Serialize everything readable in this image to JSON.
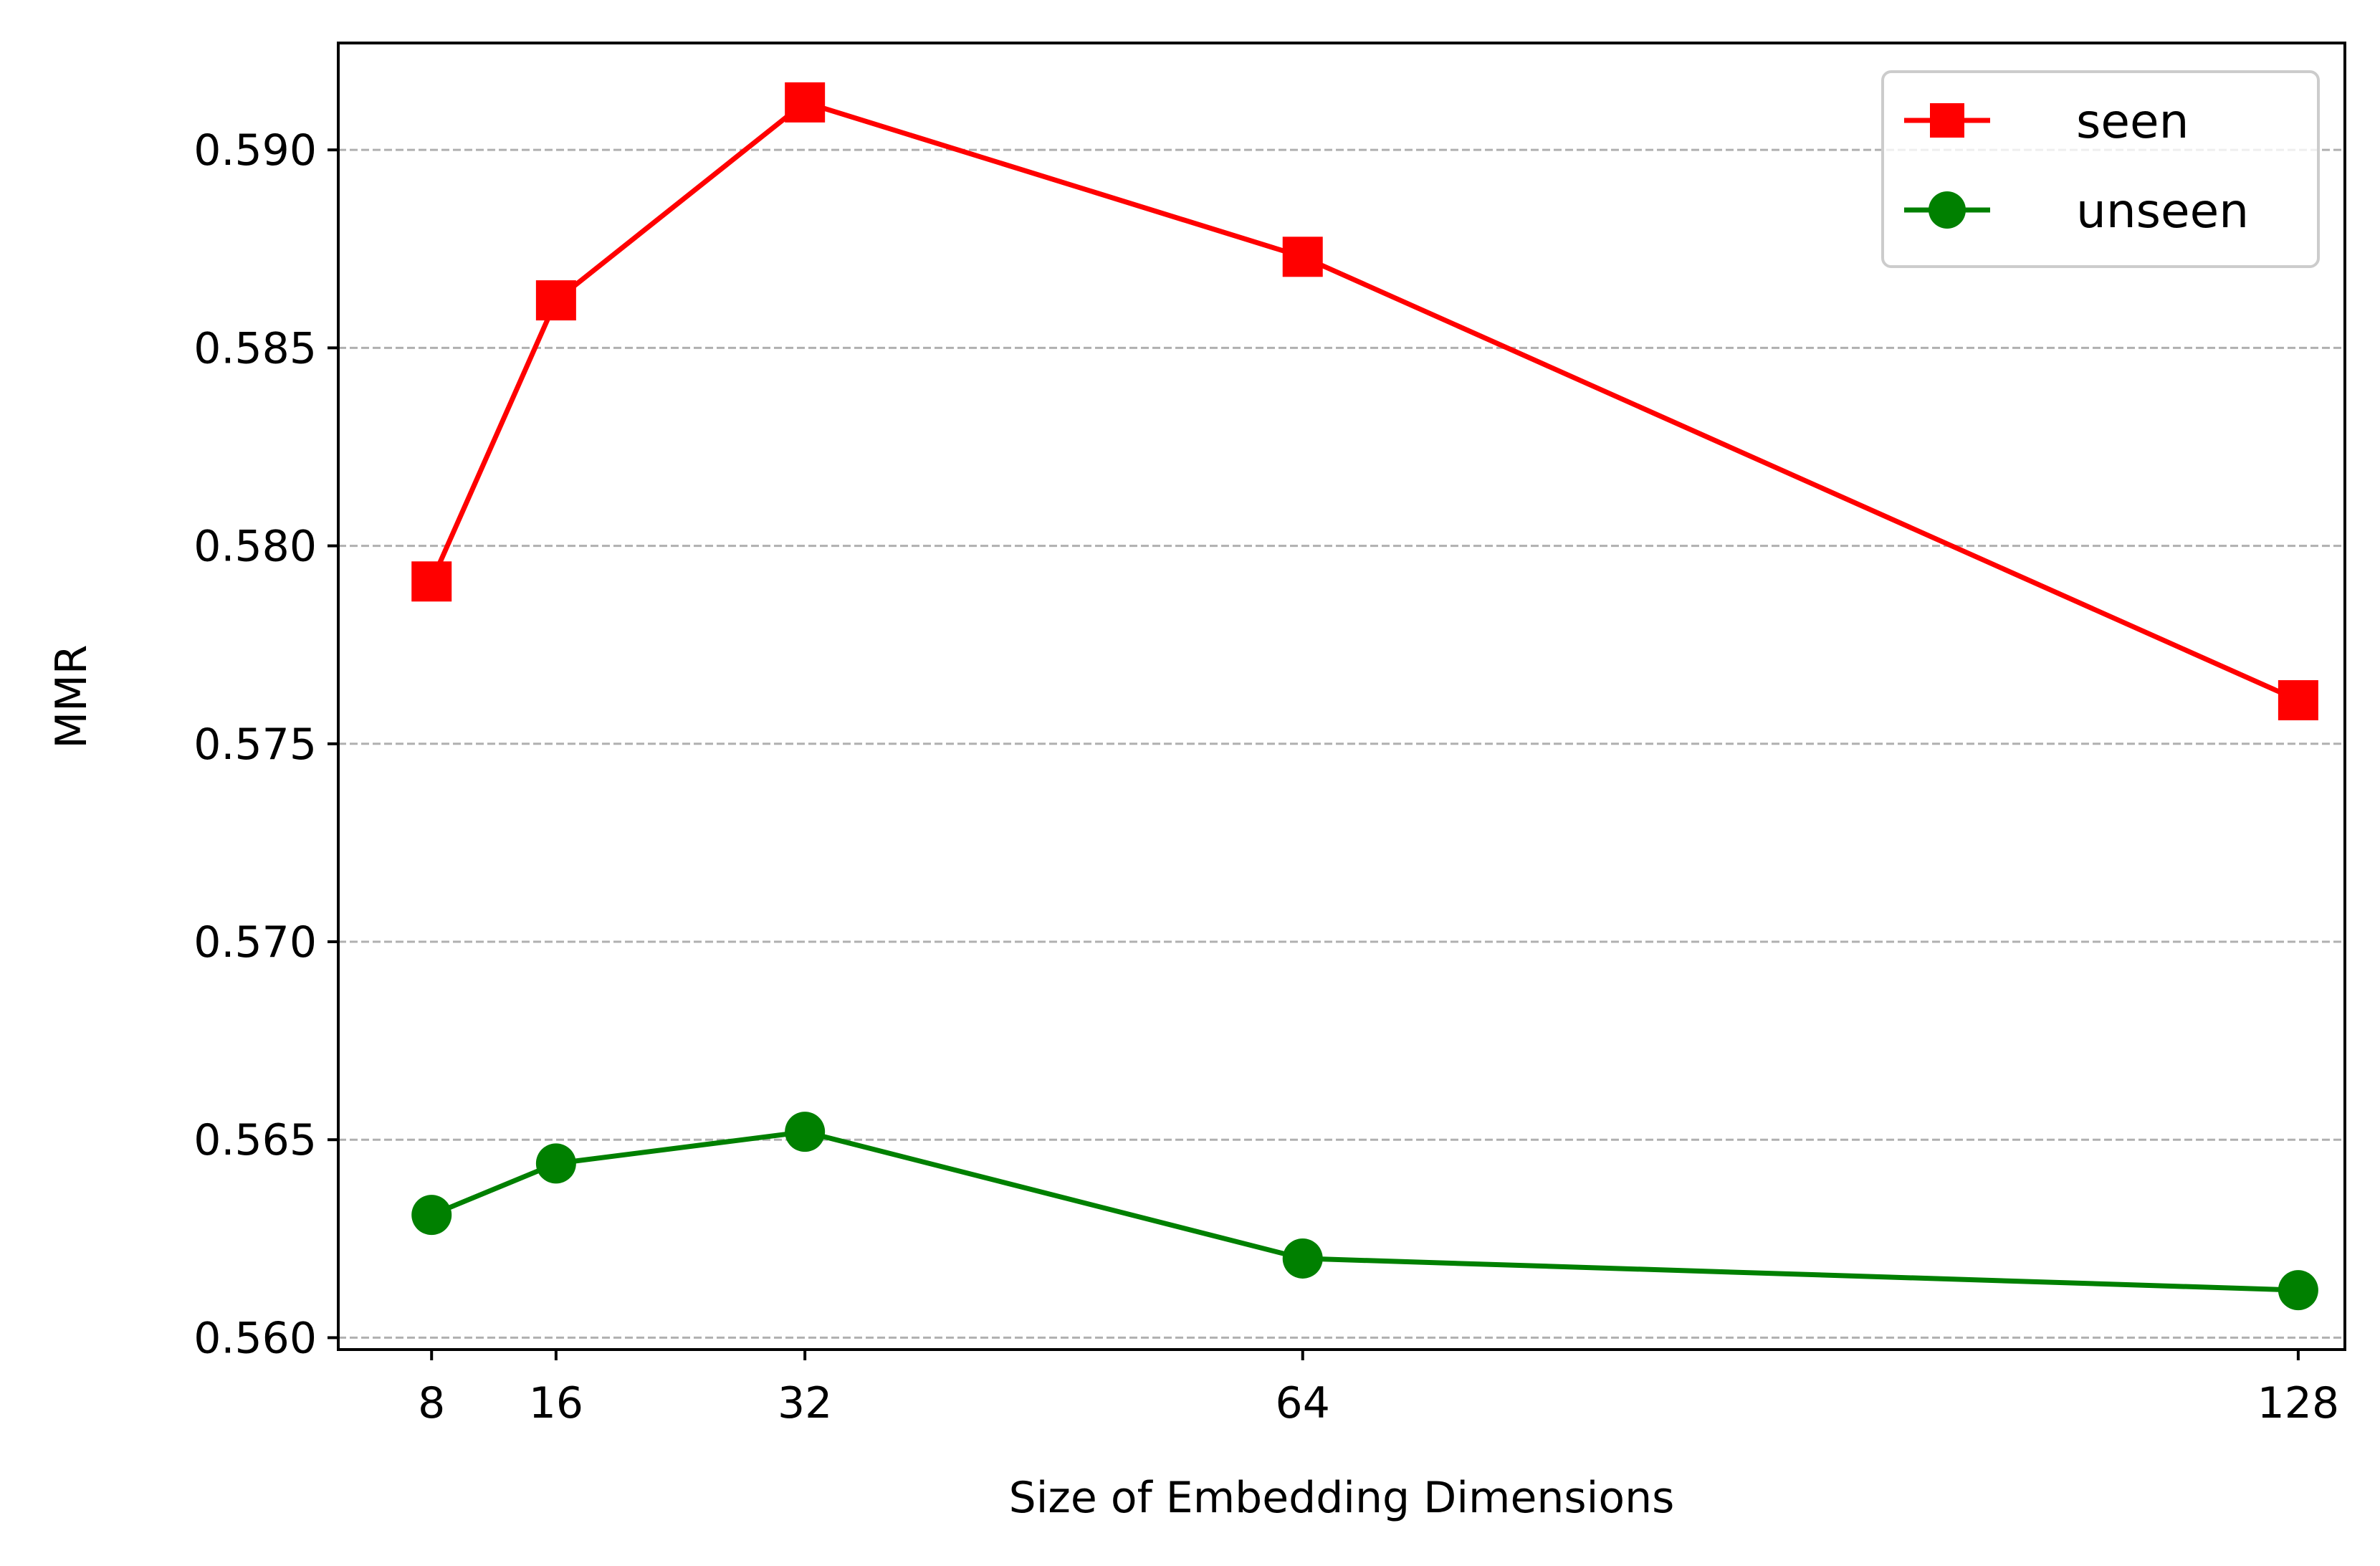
{
  "chart_data": {
    "type": "line",
    "title": "",
    "xlabel": "Size of Embedding Dimensions",
    "ylabel": "MMR",
    "x": [
      8,
      16,
      32,
      64,
      128
    ],
    "xticks": [
      "8",
      "16",
      "32",
      "64",
      "128"
    ],
    "xlim": [
      2,
      131
    ],
    "yticks": [
      "0.560",
      "0.565",
      "0.570",
      "0.575",
      "0.580",
      "0.585",
      "0.590"
    ],
    "ytick_values": [
      0.56,
      0.565,
      0.57,
      0.575,
      0.58,
      0.585,
      0.59
    ],
    "ylim": [
      0.5597,
      0.5927
    ],
    "grid": "y-dashed",
    "legend_position": "top-right",
    "series": [
      {
        "name": "seen",
        "color": "#ff0000",
        "marker": "square",
        "values": [
          0.5791,
          0.5862,
          0.5912,
          0.5873,
          0.5761
        ]
      },
      {
        "name": "unseen",
        "color": "#008000",
        "marker": "circle",
        "values": [
          0.5631,
          0.5644,
          0.5652,
          0.562,
          0.5612
        ]
      }
    ]
  }
}
